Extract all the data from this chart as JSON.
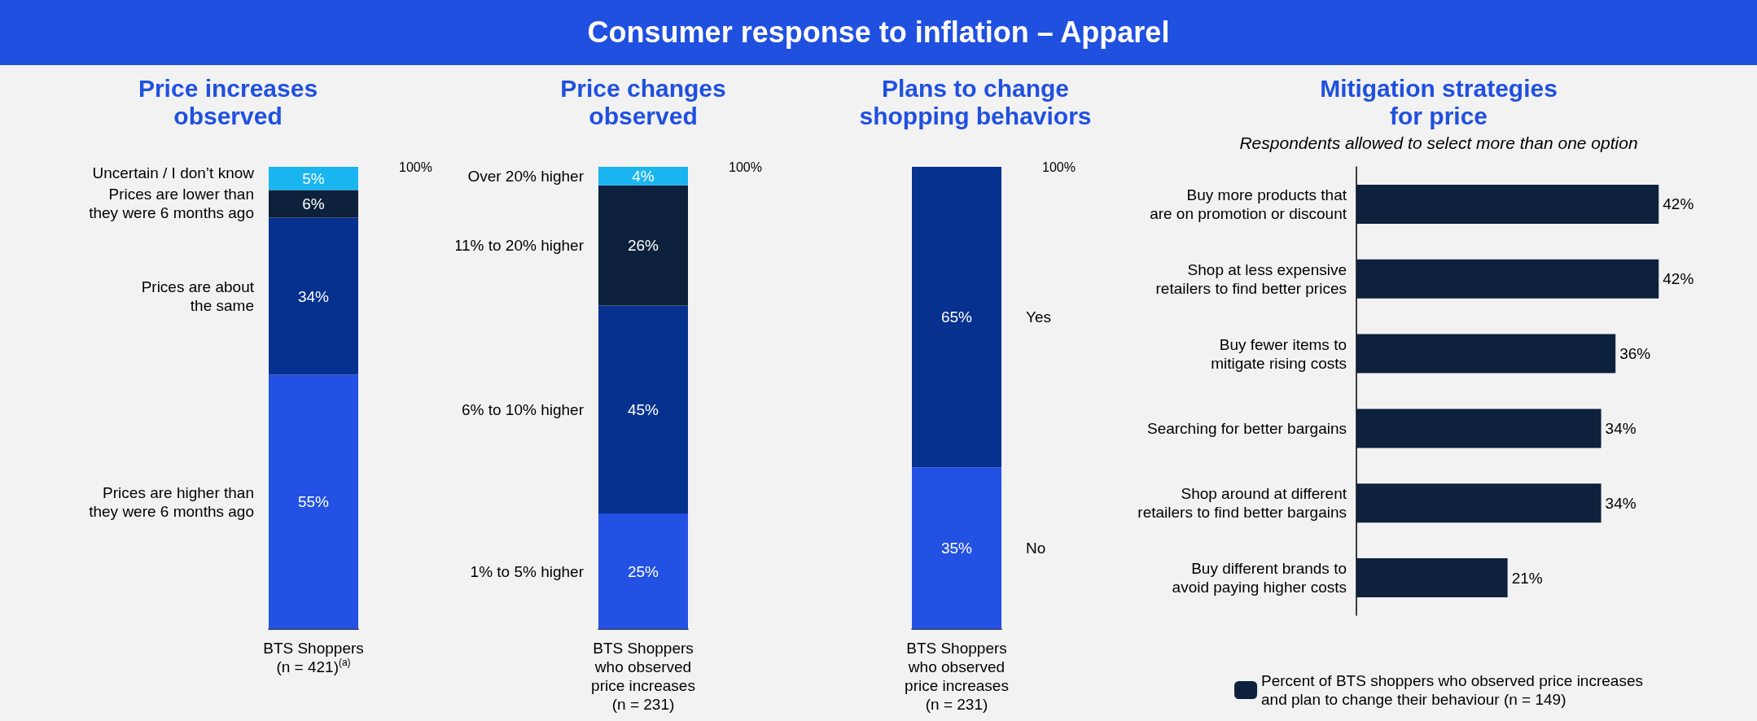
{
  "chart_data": [
    {
      "type": "other",
      "title": "Consumer response to inflation – Apparel"
    },
    {
      "type": "bar",
      "stacked": true,
      "title": "Price increases\nobserved",
      "categories": [
        "BTS Shoppers\n(n = 421)$^{(a)}$"
      ],
      "ylim": [
        0,
        100
      ],
      "tick_labels": "x",
      "annotations": [
        "100%"
      ],
      "series": [
        {
          "name": "Prices are higher than\nthey were 6 months ago",
          "color": "#2251e3",
          "values": [
            55
          ],
          "value_labels": [
            "55%"
          ]
        },
        {
          "name": "Prices are about\nthe same",
          "color": "#06318f",
          "values": [
            34
          ],
          "value_labels": [
            "34%"
          ]
        },
        {
          "name": "Prices are lower than\nthey were 6 months ago",
          "color": "#0d213d",
          "values": [
            6
          ],
          "value_labels": [
            "6%"
          ]
        },
        {
          "name": "Uncertain / I don’t know",
          "color": "#19b5f0",
          "values": [
            5
          ],
          "value_labels": [
            "5%"
          ]
        }
      ]
    },
    {
      "type": "bar",
      "stacked": true,
      "title": "Price changes\nobserved",
      "categories": [
        "BTS Shoppers\nwho observed\nprice increases\n(n = 231)"
      ],
      "ylim": [
        0,
        100
      ],
      "tick_labels": "x",
      "annotations": [
        "100%"
      ],
      "series": [
        {
          "name": "1% to 5% higher",
          "color": "#2251e3",
          "values": [
            25
          ],
          "value_labels": [
            "25%"
          ]
        },
        {
          "name": "6% to 10% higher",
          "color": "#06318f",
          "values": [
            45
          ],
          "value_labels": [
            "45%"
          ]
        },
        {
          "name": "11% to 20% higher",
          "color": "#0d213d",
          "values": [
            26
          ],
          "value_labels": [
            "26%"
          ]
        },
        {
          "name": "Over 20% higher",
          "color": "#19b5f0",
          "values": [
            4
          ],
          "value_labels": [
            "4%"
          ]
        }
      ]
    },
    {
      "type": "bar",
      "stacked": true,
      "title": "Plans to change\nshopping behaviors",
      "categories": [
        "BTS Shoppers\nwho observed\nprice increases\n(n = 231)"
      ],
      "ylim": [
        0,
        100
      ],
      "tick_labels": "x",
      "annotations": [
        "100%"
      ],
      "series": [
        {
          "name": "No",
          "color": "#2251e3",
          "values": [
            35
          ],
          "value_labels": [
            "35%"
          ]
        },
        {
          "name": "Yes",
          "color": "#06318f",
          "values": [
            65
          ],
          "value_labels": [
            "65%"
          ]
        }
      ]
    },
    {
      "type": "bar",
      "orientation": "horizontal",
      "title": "Mitigation strategies\nfor price",
      "subtitle": "Respondents allowed to select more than one option",
      "categories": [
        "Buy more products that\nare on promotion or discount",
        "Shop at less expensive\nretailers to find better prices",
        "Buy fewer items to\nmitigate rising costs",
        "Searching for better bargains",
        "Shop around at different\nretailers to find better bargains",
        "Buy different brands to\navoid paying higher costs"
      ],
      "tick_labels": "y",
      "legend": "bottom",
      "series": [
        {
          "name": "Percent of BTS shoppers who observed price increases\nand plan to change their behaviour (n = 149)",
          "color": "#0d213d",
          "values": [
            42,
            42,
            36,
            34,
            34,
            21
          ],
          "value_labels": [
            "42%",
            "42%",
            "36%",
            "34%",
            "34%",
            "21%"
          ]
        }
      ]
    }
  ]
}
